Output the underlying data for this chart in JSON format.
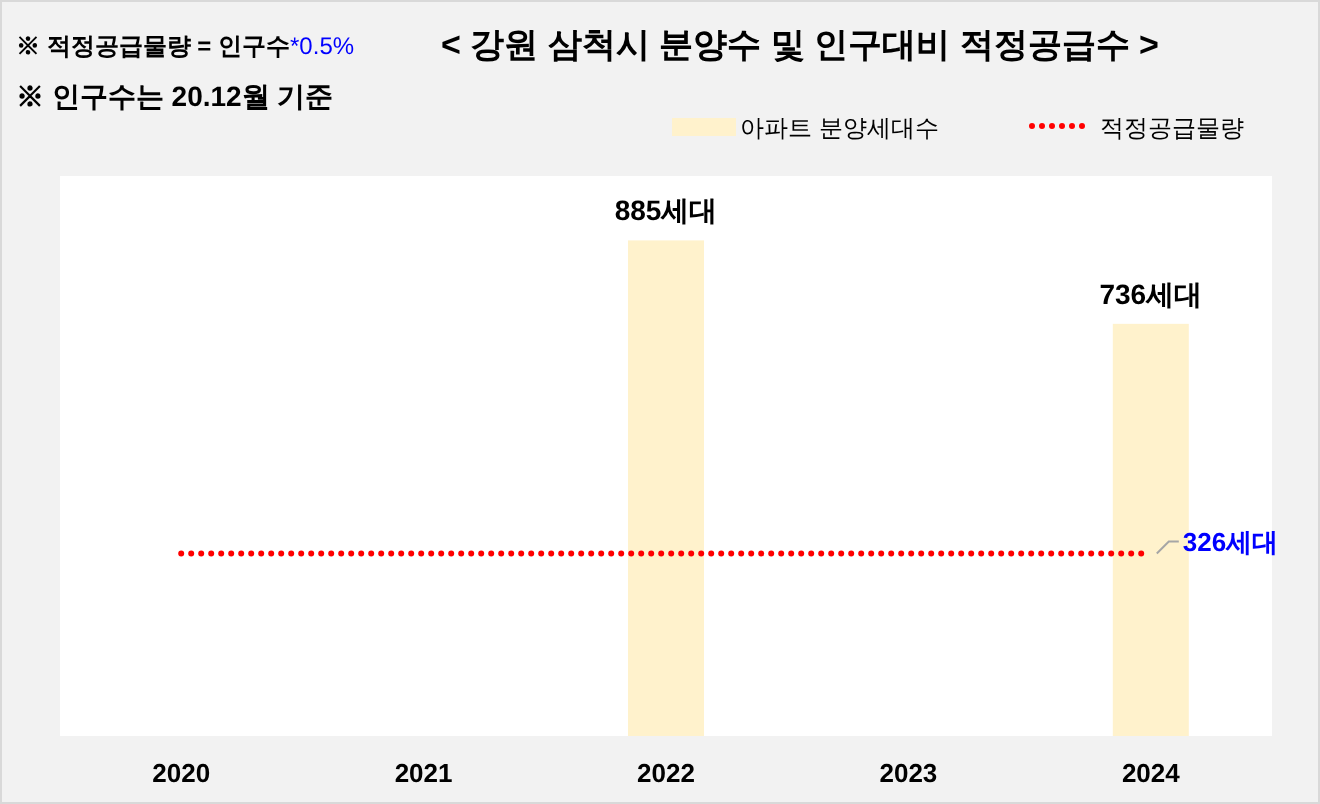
{
  "chart_data": {
    "type": "bar",
    "title": "< 강원 삼척시 분양수 및 인구대비 적정공급수 >",
    "annotations": [
      "※ 적정공급물량 = 인구수",
      "*0.5%",
      "※ 인구수는 20.12월 기준"
    ],
    "categories": [
      "2020",
      "2021",
      "2022",
      "2023",
      "2024"
    ],
    "ylim": [
      0,
      1000
    ],
    "series": [
      {
        "name": "아파트 분양세대수",
        "color": "#fff2cc",
        "values": [
          null,
          null,
          885,
          null,
          736
        ],
        "value_labels": [
          null,
          null,
          "885세대",
          null,
          "736세대"
        ]
      },
      {
        "name": "적정공급물량",
        "type": "line",
        "color": "#ff0000",
        "line_style": "dotted",
        "values": [
          326,
          326,
          326,
          326,
          326
        ],
        "value_labels": [
          null,
          null,
          null,
          null,
          "326세대"
        ]
      }
    ],
    "legend": "top right"
  }
}
